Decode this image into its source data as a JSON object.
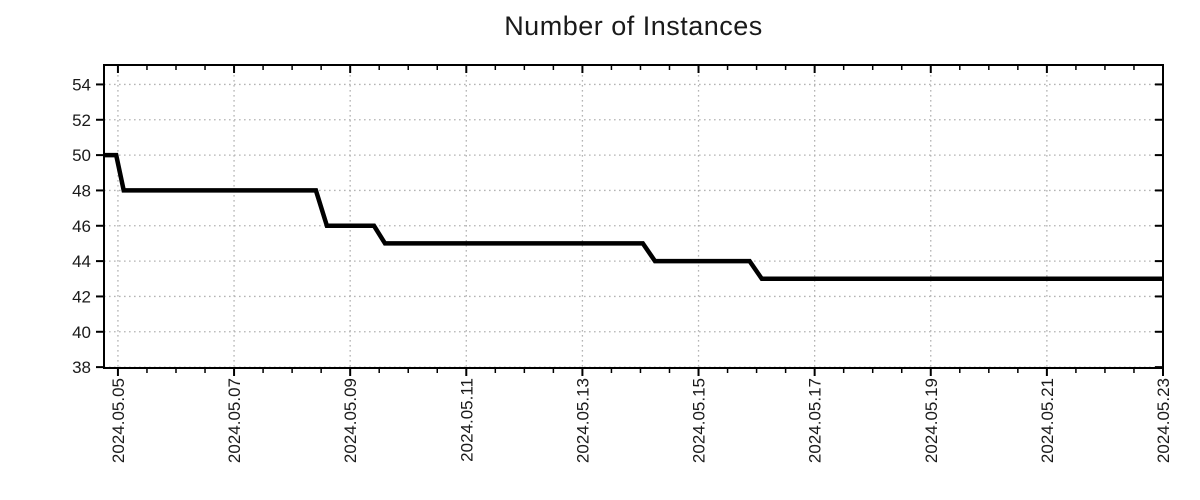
{
  "title": "Number of Instances",
  "background_color": "#ffffff",
  "chart_data": {
    "type": "line",
    "subtype": "step",
    "title": "Number of Instances",
    "xlabel": "",
    "ylabel": "",
    "legend": null,
    "grid": "dotted gray lines at major ticks, both axes",
    "x_unit": "date (year.month.day), May 2024",
    "x_tick_labels": [
      "2024.05.05",
      "2024.05.07",
      "2024.05.09",
      "2024.05.11",
      "2024.05.13",
      "2024.05.15",
      "2024.05.17",
      "2024.05.19",
      "2024.05.21",
      "2024.05.23"
    ],
    "x_tick_positions_day": [
      5,
      7,
      9,
      11,
      13,
      15,
      17,
      19,
      21,
      23
    ],
    "x_minor_tick_step_days": 0.5,
    "xlim_day": [
      4.76,
      23.0
    ],
    "y_ticks": [
      38,
      40,
      42,
      44,
      46,
      48,
      50,
      52,
      54
    ],
    "ylim": [
      37.95,
      55.1
    ],
    "line_color": "#000000",
    "line_width": 4.5,
    "grid_color": "#b3b3b3",
    "axis_color": "#000000",
    "text_color": "#1a1a1a",
    "tick_label_font_size": 17,
    "title_font_size": 27,
    "start_value": 50,
    "final_value": 43,
    "series": [
      {
        "name": "instances",
        "points_day_value": [
          [
            4.76,
            50
          ],
          [
            4.97,
            50
          ],
          [
            5.1,
            48
          ],
          [
            8.41,
            48
          ],
          [
            8.6,
            46
          ],
          [
            9.41,
            46
          ],
          [
            9.6,
            45
          ],
          [
            14.04,
            45
          ],
          [
            14.25,
            44
          ],
          [
            15.88,
            44
          ],
          [
            16.09,
            43
          ],
          [
            23.0,
            43
          ]
        ]
      }
    ],
    "step_events": [
      {
        "approx_date": "2024.05.05",
        "from": 50,
        "to": 48
      },
      {
        "approx_date": "2024.05.08",
        "from": 48,
        "to": 46
      },
      {
        "approx_date": "2024.05.09",
        "from": 46,
        "to": 45
      },
      {
        "approx_date": "2024.05.14",
        "from": 45,
        "to": 44
      },
      {
        "approx_date": "2024.05.16",
        "from": 44,
        "to": 43
      }
    ]
  }
}
